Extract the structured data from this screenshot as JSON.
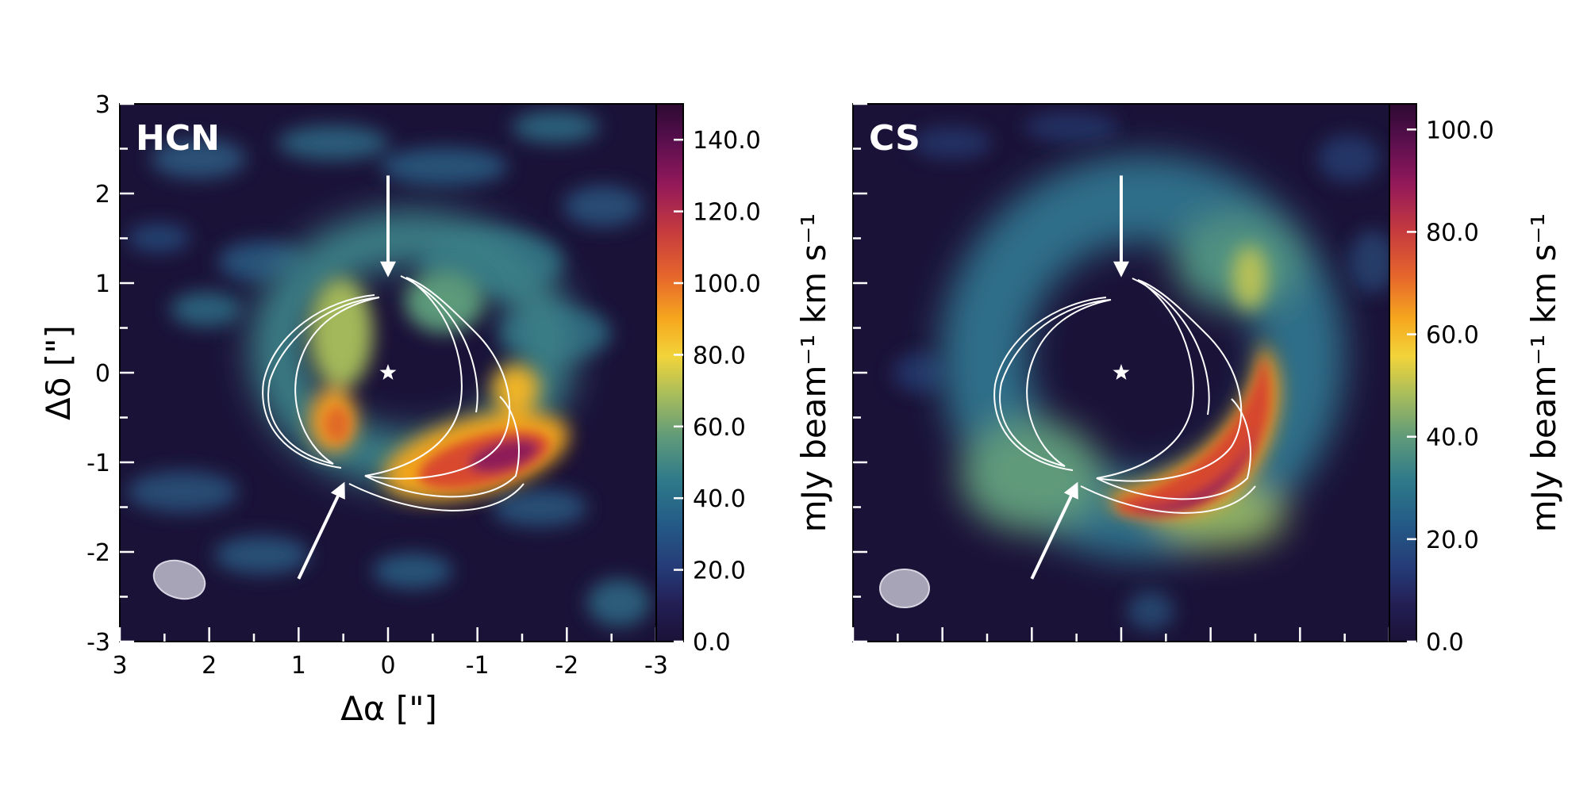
{
  "chart_data": [
    {
      "type": "heatmap",
      "panel_label": "HCN",
      "xlabel": "Δα [\"]",
      "ylabel": "Δδ [\"]",
      "xlim": [
        3,
        -3
      ],
      "ylim": [
        -3,
        3
      ],
      "x_ticks": [
        3,
        2,
        1,
        0,
        -1,
        -2,
        -3
      ],
      "y_ticks": [
        3,
        2,
        1,
        0,
        -1,
        -2,
        -3
      ],
      "colorbar": {
        "label": "mJy beam⁻¹ km s⁻¹",
        "range": [
          0,
          150
        ],
        "ticks": [
          {
            "value": 140,
            "label": "140.0"
          },
          {
            "value": 120,
            "label": "120.0"
          },
          {
            "value": 100,
            "label": "100.0"
          },
          {
            "value": 80,
            "label": "80.0"
          },
          {
            "value": 60,
            "label": "60.0"
          },
          {
            "value": 40,
            "label": "40.0"
          },
          {
            "value": 20,
            "label": "20.0"
          },
          {
            "value": 0,
            "label": "0.0"
          }
        ]
      },
      "star_position": [
        0,
        0
      ],
      "arrows": [
        {
          "from": [
            0,
            2.2
          ],
          "to": [
            0,
            1.1
          ]
        },
        {
          "from": [
            1,
            -2.3
          ],
          "to": [
            0.5,
            -1.25
          ]
        }
      ],
      "peak_emission": {
        "x": -0.9,
        "y": -1.15,
        "value": 145
      }
    },
    {
      "type": "heatmap",
      "panel_label": "CS",
      "xlabel": "",
      "ylabel": "",
      "xlim": [
        3,
        -3
      ],
      "ylim": [
        -3,
        3
      ],
      "colorbar": {
        "label": "mJy beam⁻¹ km s⁻¹",
        "range": [
          0,
          105
        ],
        "ticks": [
          {
            "value": 100,
            "label": "100.0"
          },
          {
            "value": 80,
            "label": "80.0"
          },
          {
            "value": 60,
            "label": "60.0"
          },
          {
            "value": 40,
            "label": "40.0"
          },
          {
            "value": 20,
            "label": "20.0"
          },
          {
            "value": 0,
            "label": "0.0"
          }
        ]
      },
      "star_position": [
        0,
        0
      ],
      "arrows": [
        {
          "from": [
            0,
            2.2
          ],
          "to": [
            0,
            1.1
          ]
        },
        {
          "from": [
            1,
            -2.3
          ],
          "to": [
            0.5,
            -1.25
          ]
        }
      ],
      "peak_emission": {
        "x": -1.2,
        "y": -0.6,
        "value": 100
      }
    }
  ]
}
